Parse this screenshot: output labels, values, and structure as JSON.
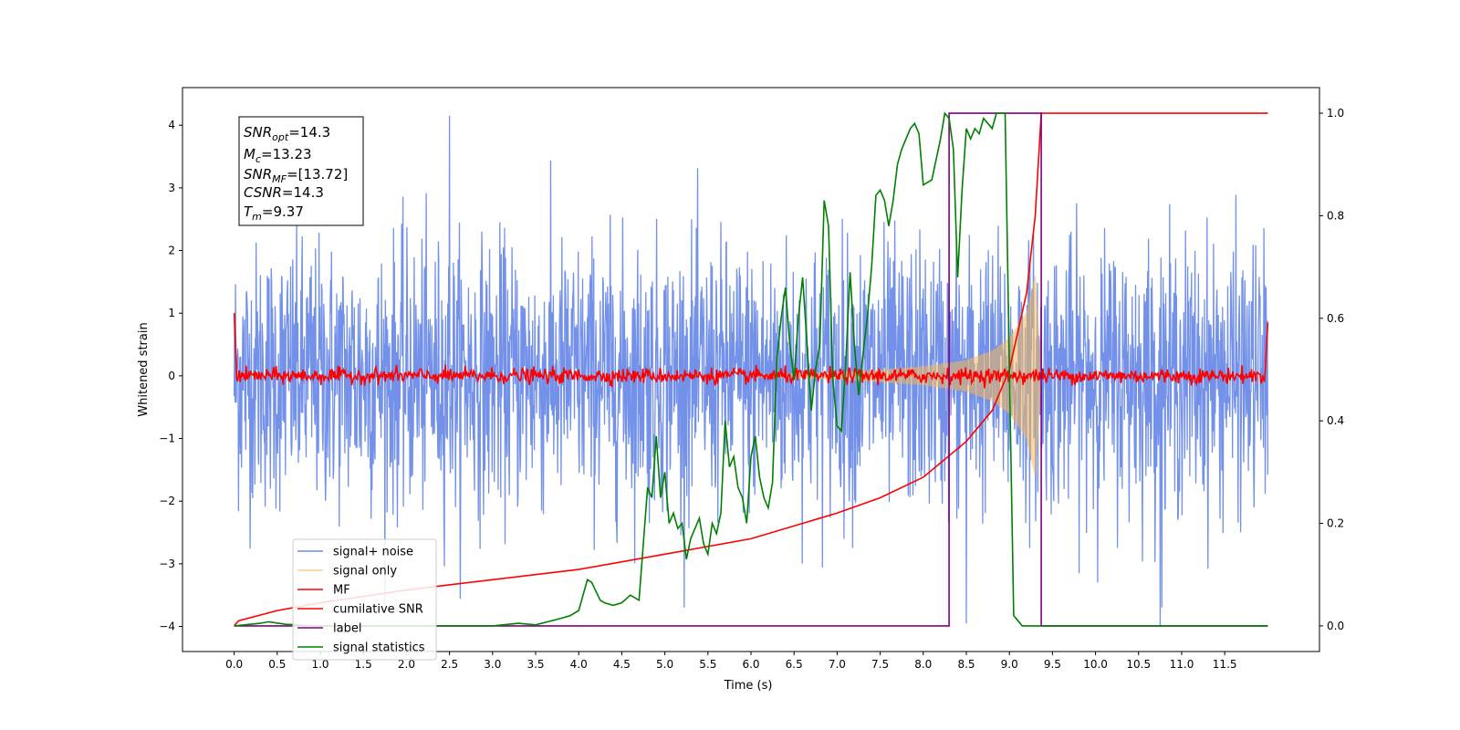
{
  "chart_data": {
    "type": "line",
    "xlabel": "Time (s)",
    "ylabel": "Whitened strain",
    "xlim": [
      -0.6,
      12.6
    ],
    "ylim": [
      -4.4,
      4.6
    ],
    "ylim_right": [
      -0.05,
      1.05
    ],
    "x_ticks": [
      "0.0",
      "0.5",
      "1.0",
      "1.5",
      "2.0",
      "2.5",
      "3.0",
      "3.5",
      "4.0",
      "4.5",
      "5.0",
      "5.5",
      "6.0",
      "6.5",
      "7.0",
      "7.5",
      "8.0",
      "8.5",
      "9.0",
      "9.5",
      "10.0",
      "10.5",
      "11.0",
      "11.5"
    ],
    "y_ticks": [
      "4",
      "3",
      "2",
      "1",
      "0",
      "−1",
      "−2",
      "−3",
      "−4"
    ],
    "y_right_ticks": [
      "1.0",
      "0.8",
      "0.6",
      "0.4",
      "0.2",
      "0.0"
    ],
    "grid": false,
    "legend_position": "lower-left",
    "info_box": {
      "snr_opt": {
        "name": "SNR",
        "sub": "opt",
        "value": "=14.3"
      },
      "mc": {
        "name": "M",
        "sub": "c",
        "value": "=13.23"
      },
      "snr_mf": {
        "name": "SNR",
        "sub": "MF",
        "value": "=[13.72]"
      },
      "csnr": {
        "name": "CSNR",
        "value": "=14.3"
      },
      "tm": {
        "name": "T",
        "sub": "m",
        "value": "=9.37"
      }
    },
    "series": [
      {
        "name": "signal+ noise",
        "axis": "left",
        "color": "#6b8be8",
        "description_range": [
          0.0,
          12.0
        ],
        "noise_std": 1.0,
        "extremes": {
          "max": 4.15,
          "min": -4.0
        }
      },
      {
        "name": "signal only",
        "axis": "left",
        "color": "#f5b85a",
        "envelope": {
          "t": [
            6.0,
            7.0,
            7.5,
            8.0,
            8.5,
            8.8,
            9.0,
            9.2,
            9.3,
            9.37
          ],
          "amp": [
            0.02,
            0.06,
            0.1,
            0.15,
            0.25,
            0.4,
            0.6,
            1.0,
            1.6,
            0.0
          ]
        }
      },
      {
        "name": "MF",
        "axis": "left",
        "color": "#ff0000",
        "start_value": 1.0,
        "end_value": 0.85,
        "noise_std": 0.06
      },
      {
        "name": "cumilative SNR",
        "axis": "right",
        "color": "#ff0000",
        "x": [
          0.0,
          0.05,
          0.5,
          1.0,
          2.0,
          3.0,
          4.0,
          5.0,
          6.0,
          7.0,
          7.5,
          8.0,
          8.5,
          8.8,
          9.0,
          9.2,
          9.3,
          9.37,
          12.0
        ],
        "y": [
          0.0,
          0.01,
          0.03,
          0.045,
          0.07,
          0.09,
          0.11,
          0.14,
          0.17,
          0.22,
          0.25,
          0.29,
          0.36,
          0.42,
          0.5,
          0.65,
          0.8,
          1.0,
          1.0
        ]
      },
      {
        "name": "label",
        "axis": "right",
        "color": "#800080",
        "x": [
          0.0,
          8.3,
          8.3,
          9.37,
          9.37,
          12.0
        ],
        "y": [
          0.0,
          0.0,
          1.0,
          1.0,
          0.0,
          0.0
        ]
      },
      {
        "name": "signal statistics",
        "axis": "right",
        "color": "#008000",
        "x": [
          0.0,
          0.3,
          0.4,
          0.6,
          1.0,
          2.0,
          3.0,
          3.3,
          3.5,
          3.8,
          3.9,
          4.0,
          4.1,
          4.15,
          4.25,
          4.3,
          4.4,
          4.5,
          4.6,
          4.7,
          4.8,
          4.85,
          4.9,
          4.95,
          5.0,
          5.05,
          5.1,
          5.15,
          5.2,
          5.25,
          5.3,
          5.35,
          5.4,
          5.45,
          5.5,
          5.55,
          5.6,
          5.65,
          5.7,
          5.75,
          5.8,
          5.85,
          5.9,
          5.95,
          6.0,
          6.05,
          6.1,
          6.15,
          6.2,
          6.25,
          6.3,
          6.35,
          6.4,
          6.45,
          6.5,
          6.55,
          6.6,
          6.65,
          6.7,
          6.75,
          6.8,
          6.85,
          6.9,
          6.95,
          7.0,
          7.05,
          7.1,
          7.15,
          7.2,
          7.25,
          7.3,
          7.35,
          7.4,
          7.45,
          7.5,
          7.55,
          7.6,
          7.65,
          7.7,
          7.75,
          7.8,
          7.85,
          7.9,
          7.95,
          8.0,
          8.1,
          8.2,
          8.25,
          8.3,
          8.35,
          8.4,
          8.45,
          8.5,
          8.55,
          8.6,
          8.65,
          8.7,
          8.75,
          8.8,
          8.85,
          8.9,
          8.95,
          9.0,
          9.05,
          9.1,
          9.15,
          9.2,
          9.25,
          9.3,
          9.35,
          9.4,
          9.5,
          9.7,
          10.0,
          11.0,
          12.0
        ],
        "y": [
          0.0,
          0.005,
          0.008,
          0.003,
          0.0,
          0.0,
          0.0,
          0.005,
          0.002,
          0.015,
          0.02,
          0.03,
          0.09,
          0.085,
          0.05,
          0.045,
          0.04,
          0.045,
          0.06,
          0.05,
          0.27,
          0.25,
          0.37,
          0.25,
          0.3,
          0.2,
          0.22,
          0.19,
          0.2,
          0.13,
          0.17,
          0.19,
          0.21,
          0.16,
          0.14,
          0.2,
          0.18,
          0.22,
          0.4,
          0.31,
          0.33,
          0.27,
          0.25,
          0.2,
          0.33,
          0.37,
          0.29,
          0.25,
          0.23,
          0.28,
          0.52,
          0.6,
          0.66,
          0.55,
          0.48,
          0.6,
          0.68,
          0.55,
          0.42,
          0.5,
          0.55,
          0.83,
          0.78,
          0.48,
          0.39,
          0.38,
          0.51,
          0.69,
          0.55,
          0.45,
          0.53,
          0.6,
          0.7,
          0.84,
          0.85,
          0.83,
          0.78,
          0.83,
          0.9,
          0.93,
          0.95,
          0.97,
          0.98,
          0.96,
          0.86,
          0.87,
          0.95,
          1.0,
          0.99,
          0.93,
          0.68,
          0.85,
          0.97,
          0.95,
          0.97,
          0.96,
          0.99,
          0.98,
          0.97,
          1.0,
          1.0,
          1.0,
          0.5,
          0.02,
          0.01,
          0.0,
          0.0,
          0.0,
          0.0,
          0.0,
          0.0,
          0.0,
          0.0,
          0.0,
          0.0,
          0.0
        ]
      }
    ]
  }
}
